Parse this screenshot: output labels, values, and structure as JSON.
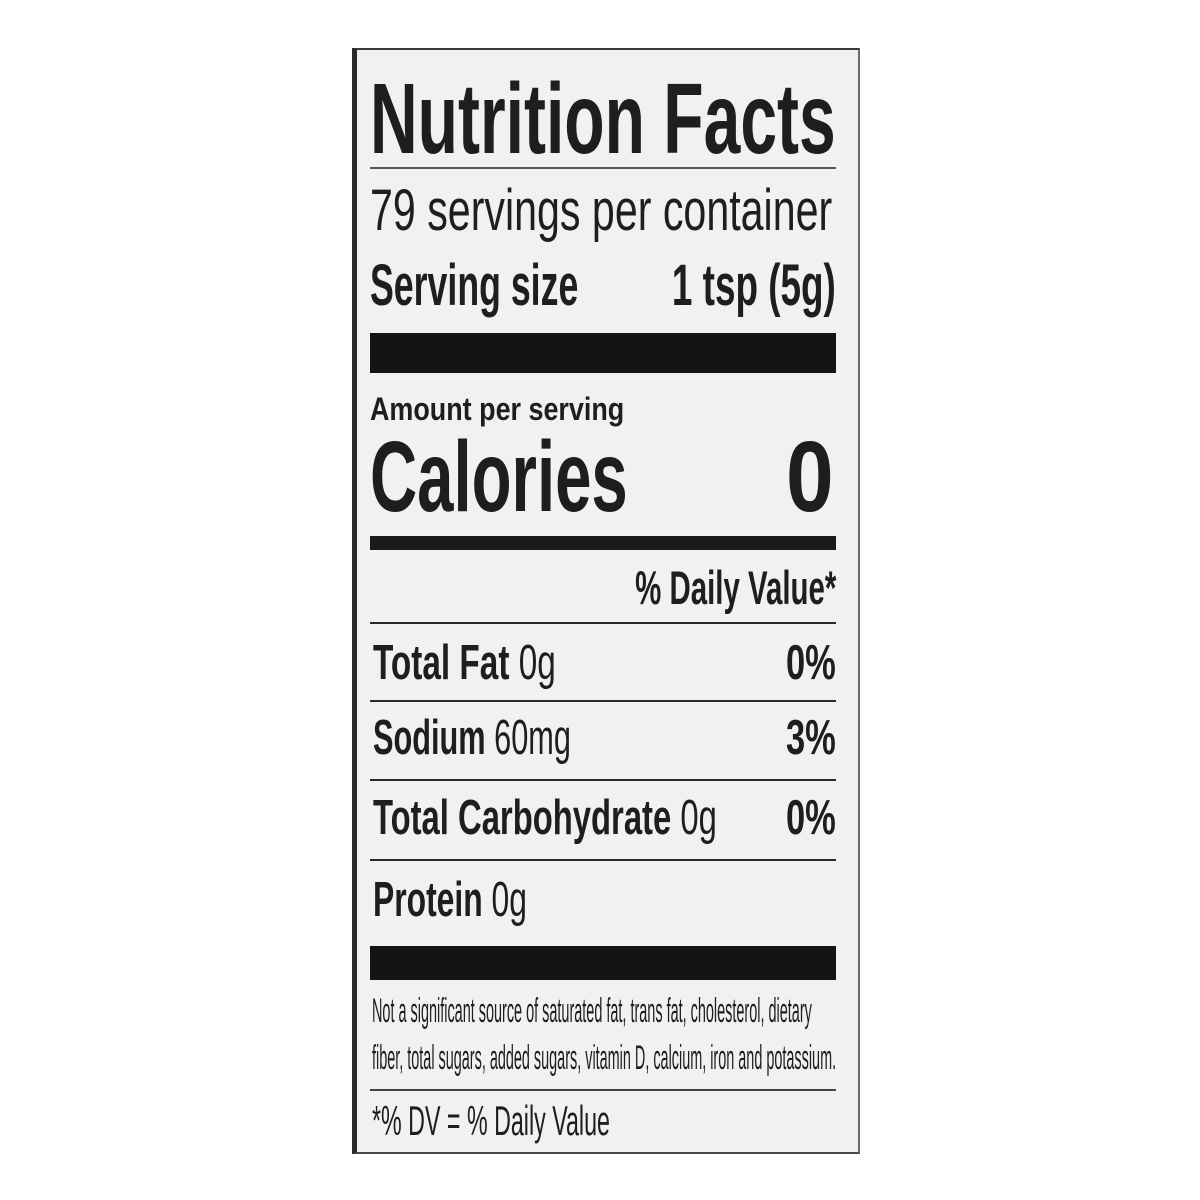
{
  "label": {
    "title": "Nutrition Facts",
    "servings_per_container": "79 servings per container",
    "serving_size_label": "Serving size",
    "serving_size_value": "1 tsp (5g)",
    "amount_per_serving": "Amount per serving",
    "calories_label": "Calories",
    "calories_value": "0",
    "daily_value_header": "% Daily Value*",
    "nutrients": [
      {
        "name": "Total Fat",
        "amount": "0g",
        "dv": "0%"
      },
      {
        "name": "Sodium",
        "amount": "60mg",
        "dv": "3%"
      },
      {
        "name": "Total Carbohydrate",
        "amount": "0g",
        "dv": "0%"
      },
      {
        "name": "Protein",
        "amount": "0g",
        "dv": ""
      }
    ],
    "footnote_line1": "Not a significant source of saturated fat, trans fat, cholesterol, dietary",
    "footnote_line2": "fiber, total sugars, added sugars, vitamin D, calcium, iron and potassium.",
    "dv_note": "*% DV = % Daily Value"
  }
}
